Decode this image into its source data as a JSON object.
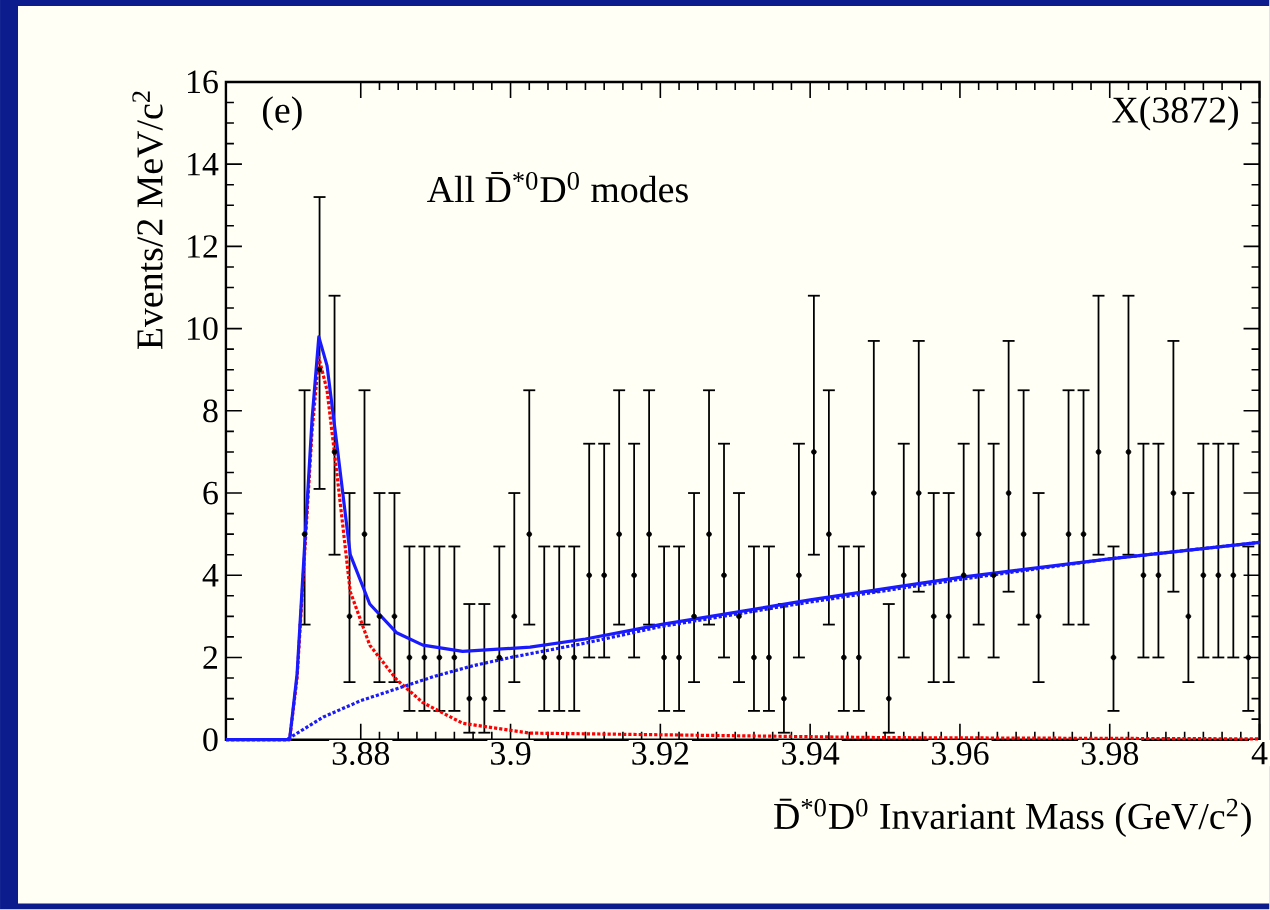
{
  "chart_data": {
    "type": "scatter",
    "xlabel": "D̄$^{*0}$D$^{0}$ Invariant Mass (GeV/c$^{2}$)",
    "ylabel": "Events/2 MeV/c$^{2}$",
    "annotations": [
      "(e)",
      "All D̄$^{*0}$D$^{0}$ modes",
      "X(3872)"
    ],
    "xlim": [
      3.862,
      4.0
    ],
    "ylim": [
      0,
      16
    ],
    "xticks": [
      3.88,
      3.9,
      3.92,
      3.94,
      3.96,
      3.98,
      4
    ],
    "yticks": [
      0,
      2,
      4,
      6,
      8,
      10,
      12,
      14,
      16
    ],
    "grid": false,
    "series": [
      {
        "color": "#000000",
        "marker": "circle",
        "x": [
          3.8725,
          3.8745,
          3.8765,
          3.8785,
          3.8805,
          3.8825,
          3.8845,
          3.8865,
          3.8885,
          3.8905,
          3.8925,
          3.8945,
          3.8965,
          3.8985,
          3.9005,
          3.9025,
          3.9045,
          3.9065,
          3.9085,
          3.9105,
          3.9125,
          3.9145,
          3.9165,
          3.9185,
          3.9205,
          3.9225,
          3.9245,
          3.9265,
          3.9285,
          3.9305,
          3.9325,
          3.9345,
          3.9365,
          3.9385,
          3.9405,
          3.9425,
          3.9445,
          3.9465,
          3.9485,
          3.9505,
          3.9525,
          3.9545,
          3.9565,
          3.9585,
          3.9605,
          3.9625,
          3.9645,
          3.9665,
          3.9685,
          3.9705,
          3.9725,
          3.9745,
          3.9765,
          3.9785,
          3.9805,
          3.9825,
          3.9845,
          3.9865,
          3.9885,
          3.9905,
          3.9925,
          3.9945,
          3.9965,
          3.9985
        ],
        "values": [
          5,
          9,
          7,
          3,
          5,
          3,
          3,
          2,
          2,
          2,
          2,
          1,
          1,
          2,
          3,
          5,
          2,
          2,
          2,
          4,
          4,
          5,
          4,
          5,
          2,
          2,
          3,
          5,
          4,
          3,
          2,
          2,
          1,
          4,
          7,
          5,
          2,
          2,
          6,
          1,
          4,
          6,
          3,
          3,
          4,
          5,
          4,
          6,
          5,
          3,
          null,
          5,
          5,
          7,
          2,
          7,
          4,
          4,
          6,
          3,
          4,
          4,
          4,
          2
        ],
        "errors": [
          [
            2.8,
            8.5
          ],
          [
            6.1,
            13.2
          ],
          [
            4.5,
            10.8
          ],
          [
            1.4,
            6
          ],
          [
            2.8,
            8.5
          ],
          [
            1.4,
            6
          ],
          [
            1.4,
            6
          ],
          [
            0.7,
            4.7
          ],
          [
            0.7,
            4.7
          ],
          [
            0.7,
            4.7
          ],
          [
            0.7,
            4.7
          ],
          [
            0.17,
            3.3
          ],
          [
            0.17,
            3.3
          ],
          [
            0.7,
            4.7
          ],
          [
            1.4,
            6
          ],
          [
            2.8,
            8.5
          ],
          [
            0.7,
            4.7
          ],
          [
            0.7,
            4.7
          ],
          [
            0.7,
            4.7
          ],
          [
            2,
            7.2
          ],
          [
            2,
            7.2
          ],
          [
            2.8,
            8.5
          ],
          [
            2,
            7.2
          ],
          [
            2.8,
            8.5
          ],
          [
            0.7,
            4.7
          ],
          [
            0.7,
            4.7
          ],
          [
            1.4,
            6
          ],
          [
            2.8,
            8.5
          ],
          [
            2,
            7.2
          ],
          [
            1.4,
            6
          ],
          [
            0.7,
            4.7
          ],
          [
            0.7,
            4.7
          ],
          [
            0.17,
            3.3
          ],
          [
            2,
            7.2
          ],
          [
            4.5,
            10.8
          ],
          [
            2.8,
            8.5
          ],
          [
            0.7,
            4.7
          ],
          [
            0.7,
            4.7
          ],
          [
            3.6,
            9.7
          ],
          [
            0.17,
            3.3
          ],
          [
            2,
            7.2
          ],
          [
            3.6,
            9.7
          ],
          [
            1.4,
            6
          ],
          [
            1.4,
            6
          ],
          [
            2,
            7.2
          ],
          [
            2.8,
            8.5
          ],
          [
            2,
            7.2
          ],
          [
            3.6,
            9.7
          ],
          [
            2.8,
            8.5
          ],
          [
            1.4,
            6
          ],
          null,
          [
            2.8,
            8.5
          ],
          [
            2.8,
            8.5
          ],
          [
            4.5,
            10.8
          ],
          [
            0.7,
            4.7
          ],
          [
            4.5,
            10.8
          ],
          [
            2,
            7.2
          ],
          [
            2,
            7.2
          ],
          [
            3.6,
            9.7
          ],
          [
            1.4,
            6
          ],
          [
            2,
            7.2
          ],
          [
            2,
            7.2
          ],
          [
            2,
            7.2
          ],
          [
            0.7,
            4.7
          ]
        ]
      },
      {
        "type": "line",
        "color": "#ff0000",
        "line_style": "dotted",
        "x": [
          3.862,
          3.8705,
          3.8715,
          3.8725,
          3.8735,
          3.8744,
          3.8755,
          3.8768,
          3.8786,
          3.8812,
          3.8848,
          3.8883,
          3.8936,
          3.9026,
          3.95,
          4.0
        ],
        "values": [
          0,
          0,
          1.5,
          4.5,
          7.5,
          9.3,
          8.5,
          6.5,
          3.6,
          2.3,
          1.46,
          0.9,
          0.4,
          0.16,
          0.05,
          0.02
        ]
      },
      {
        "type": "line",
        "color": "#1a1aff",
        "line_style": "dotted",
        "x": [
          3.862,
          3.8701,
          3.875,
          3.88,
          3.885,
          3.89,
          3.895,
          3.9,
          3.91,
          3.92,
          3.94,
          3.96,
          3.98,
          4.0
        ],
        "values": [
          0,
          0,
          0.55,
          0.95,
          1.25,
          1.55,
          1.8,
          2.0,
          2.35,
          2.75,
          3.35,
          3.9,
          4.4,
          4.8
        ]
      },
      {
        "type": "line",
        "color": "#1a1aff",
        "line_style": "solid",
        "x": [
          3.862,
          3.8705,
          3.8715,
          3.8725,
          3.8735,
          3.8744,
          3.8755,
          3.8768,
          3.8786,
          3.8812,
          3.8848,
          3.8883,
          3.8936,
          3.9026,
          3.91,
          3.92,
          3.94,
          3.96,
          3.98,
          4.0
        ],
        "values": [
          0,
          0,
          1.6,
          4.7,
          7.8,
          9.8,
          9.1,
          7.2,
          4.5,
          3.3,
          2.6,
          2.3,
          2.15,
          2.25,
          2.45,
          2.8,
          3.4,
          3.95,
          4.4,
          4.8
        ]
      }
    ]
  }
}
